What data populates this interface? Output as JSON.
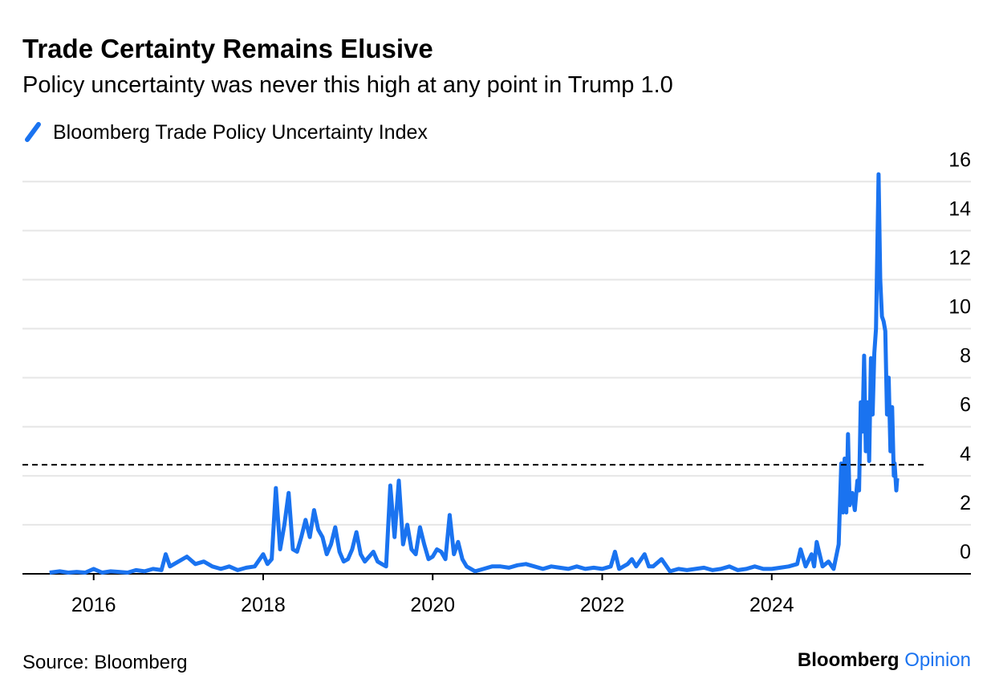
{
  "chart_data": {
    "type": "line",
    "title": "Trade Certainty Remains Elusive",
    "subtitle": "Policy uncertainty was never this high at any point in Trump 1.0",
    "source": "Source: Bloomberg",
    "logo": "Bloomberg",
    "logo_accent": "Opinion",
    "x": [
      2015.48,
      2015.6,
      2015.7,
      2015.8,
      2015.9,
      2016.0,
      2016.1,
      2016.2,
      2016.3,
      2016.4,
      2016.5,
      2016.6,
      2016.7,
      2016.8,
      2016.85,
      2016.9,
      2017.0,
      2017.1,
      2017.2,
      2017.3,
      2017.4,
      2017.5,
      2017.6,
      2017.7,
      2017.8,
      2017.9,
      2018.0,
      2018.05,
      2018.1,
      2018.15,
      2018.2,
      2018.25,
      2018.3,
      2018.35,
      2018.4,
      2018.45,
      2018.5,
      2018.55,
      2018.6,
      2018.65,
      2018.7,
      2018.75,
      2018.8,
      2018.85,
      2018.9,
      2018.95,
      2019.0,
      2019.05,
      2019.1,
      2019.15,
      2019.2,
      2019.25,
      2019.3,
      2019.35,
      2019.4,
      2019.45,
      2019.5,
      2019.55,
      2019.6,
      2019.65,
      2019.7,
      2019.75,
      2019.8,
      2019.85,
      2019.9,
      2019.95,
      2020.0,
      2020.05,
      2020.1,
      2020.15,
      2020.2,
      2020.25,
      2020.3,
      2020.35,
      2020.4,
      2020.5,
      2020.6,
      2020.7,
      2020.8,
      2020.9,
      2021.0,
      2021.1,
      2021.2,
      2021.3,
      2021.4,
      2021.5,
      2021.6,
      2021.7,
      2021.8,
      2021.9,
      2022.0,
      2022.1,
      2022.15,
      2022.2,
      2022.3,
      2022.35,
      2022.4,
      2022.5,
      2022.55,
      2022.6,
      2022.7,
      2022.8,
      2022.9,
      2023.0,
      2023.1,
      2023.2,
      2023.3,
      2023.4,
      2023.5,
      2023.6,
      2023.7,
      2023.8,
      2023.9,
      2024.0,
      2024.1,
      2024.2,
      2024.3,
      2024.34,
      2024.4,
      2024.47,
      2024.5,
      2024.53,
      2024.6,
      2024.67,
      2024.73,
      2024.79,
      2024.82,
      2024.84,
      2024.86,
      2024.88,
      2024.9,
      2024.92,
      2024.95,
      2024.98,
      2025.01,
      2025.03,
      2025.05,
      2025.07,
      2025.09,
      2025.11,
      2025.13,
      2025.15,
      2025.17,
      2025.19,
      2025.21,
      2025.23,
      2025.26,
      2025.28,
      2025.3,
      2025.32,
      2025.34,
      2025.36,
      2025.38,
      2025.4,
      2025.42,
      2025.44,
      2025.45,
      2025.47,
      2025.48
    ],
    "series": [
      {
        "name": "Bloomberg Trade Policy Uncertainty Index",
        "color": "#1a73f0",
        "values": [
          0.05,
          0.1,
          0.05,
          0.08,
          0.05,
          0.2,
          0.05,
          0.1,
          0.08,
          0.05,
          0.15,
          0.1,
          0.2,
          0.15,
          0.8,
          0.3,
          0.5,
          0.7,
          0.4,
          0.5,
          0.3,
          0.2,
          0.3,
          0.15,
          0.25,
          0.3,
          0.8,
          0.4,
          0.6,
          3.5,
          1.0,
          2.0,
          3.3,
          1.0,
          0.9,
          1.5,
          2.2,
          1.5,
          2.6,
          1.8,
          1.5,
          0.8,
          1.2,
          1.9,
          0.9,
          0.5,
          0.6,
          1.0,
          1.7,
          0.8,
          0.5,
          0.7,
          0.9,
          0.5,
          0.4,
          0.3,
          3.6,
          1.5,
          3.8,
          1.2,
          2.0,
          1.0,
          0.8,
          1.9,
          1.2,
          0.6,
          0.7,
          1.0,
          0.9,
          0.6,
          2.4,
          0.8,
          1.3,
          0.6,
          0.3,
          0.1,
          0.2,
          0.3,
          0.3,
          0.25,
          0.35,
          0.4,
          0.3,
          0.2,
          0.3,
          0.25,
          0.2,
          0.3,
          0.2,
          0.25,
          0.2,
          0.3,
          0.9,
          0.2,
          0.4,
          0.6,
          0.3,
          0.8,
          0.3,
          0.3,
          0.6,
          0.1,
          0.2,
          0.15,
          0.2,
          0.25,
          0.15,
          0.2,
          0.3,
          0.15,
          0.2,
          0.3,
          0.2,
          0.2,
          0.25,
          0.3,
          0.4,
          1.0,
          0.3,
          0.8,
          0.3,
          1.3,
          0.3,
          0.5,
          0.2,
          1.2,
          4.5,
          2.5,
          4.7,
          2.5,
          5.7,
          2.8,
          3.3,
          2.6,
          3.8,
          3.4,
          7.0,
          5.8,
          8.9,
          5.0,
          7.0,
          4.6,
          8.8,
          6.5,
          9.0,
          10.0,
          16.3,
          12.0,
          10.5,
          10.3,
          9.9,
          6.5,
          8.0,
          5.0,
          6.8,
          4.0,
          4.5,
          3.4,
          3.9
        ]
      }
    ],
    "xlim": [
      2015.16,
      2026.35
    ],
    "xticks": [
      2016,
      2018,
      2020,
      2022,
      2024
    ],
    "ylim": [
      0,
      16.5
    ],
    "yticks": [
      0,
      2,
      4,
      6,
      8,
      10,
      12,
      14,
      16
    ],
    "hline": 4.45,
    "grid": true
  }
}
